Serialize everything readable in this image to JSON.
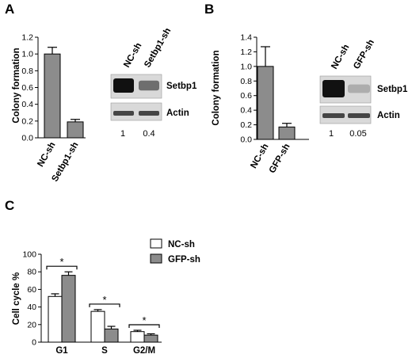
{
  "panels": {
    "A": "A",
    "B": "B",
    "C": "C"
  },
  "colors": {
    "bar_gray": "#8c8c8c",
    "bar_white": "#ffffff",
    "blot_bg": "#d9d9d9",
    "band_dark": "#111111"
  },
  "chart_data": [
    {
      "id": "A",
      "type": "bar",
      "title": "",
      "ylabel": "Colony formation",
      "xlabel": "",
      "ylim": [
        0,
        1.2
      ],
      "yticks": [
        "0.0",
        "0.2",
        "0.4",
        "0.6",
        "0.8",
        "1.0",
        "1.2"
      ],
      "categories": [
        "NC-sh",
        "Setbp1-sh"
      ],
      "values": [
        1.0,
        0.19
      ],
      "errors": [
        0.08,
        0.03
      ],
      "grid": false
    },
    {
      "id": "B",
      "type": "bar",
      "title": "",
      "ylabel": "Colony formation",
      "xlabel": "",
      "ylim": [
        0,
        1.4
      ],
      "yticks": [
        "0.0",
        "0.2",
        "0.4",
        "0.6",
        "0.8",
        "1.0",
        "1.2",
        "1.4"
      ],
      "categories": [
        "NC-sh",
        "GFP-sh"
      ],
      "values": [
        1.0,
        0.17
      ],
      "errors": [
        0.27,
        0.05
      ],
      "grid": false
    },
    {
      "id": "C",
      "type": "bar",
      "title": "",
      "ylabel": "Cell cycle %",
      "xlabel": "",
      "ylim": [
        0,
        100
      ],
      "yticks": [
        "0",
        "20",
        "40",
        "60",
        "80",
        "100"
      ],
      "categories": [
        "G1",
        "S",
        "G2/M"
      ],
      "series": [
        {
          "name": "NC-sh",
          "values": [
            52,
            35,
            12
          ],
          "errors": [
            3,
            2,
            1.5
          ]
        },
        {
          "name": "GFP-sh",
          "values": [
            76,
            15,
            8
          ],
          "errors": [
            4,
            3,
            1.5
          ]
        }
      ],
      "significance": [
        "*",
        "*",
        "*"
      ],
      "legend": "top-right",
      "grid": false
    }
  ],
  "blots": [
    {
      "id": "A",
      "lanes": [
        "NC-sh",
        "Setbp1-sh"
      ],
      "rows": [
        "Setbp1",
        "Actin"
      ],
      "quant": [
        "1",
        "0.4"
      ],
      "band_intensity": [
        1.0,
        0.45
      ]
    },
    {
      "id": "B",
      "lanes": [
        "NC-sh",
        "GFP-sh"
      ],
      "rows": [
        "Setbp1",
        "Actin"
      ],
      "quant": [
        "1",
        "0.05"
      ],
      "band_intensity": [
        1.0,
        0.08
      ]
    }
  ]
}
